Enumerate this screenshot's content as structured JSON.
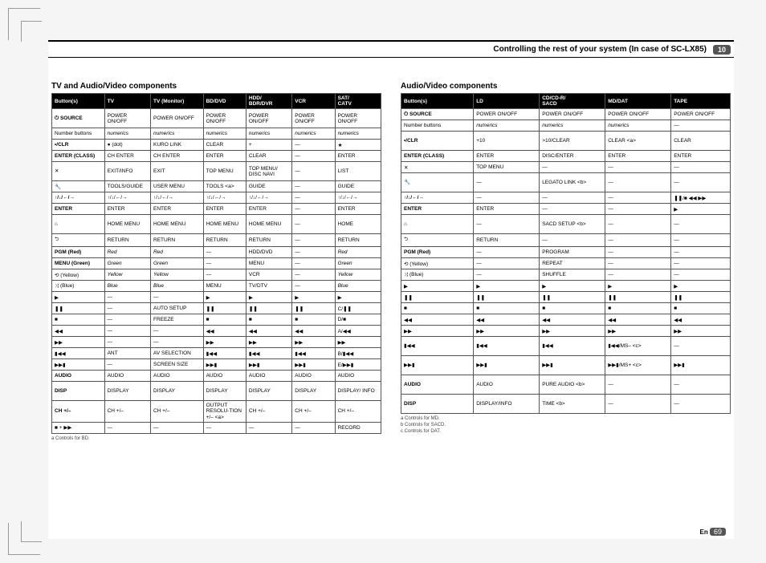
{
  "header": {
    "title_prefix": "Controlling the rest of your system (In case of ",
    "model": "SC-LX85",
    "title_suffix": ")",
    "chapter": "10"
  },
  "page_footer": {
    "lang": "En",
    "page": "69"
  },
  "left": {
    "title": "TV and Audio/Video components",
    "columns": [
      "Button(s)",
      "TV",
      "TV (Monitor)",
      "BD/DVD",
      "HDD/\nBDR/DVR",
      "VCR",
      "SAT/\nCATV"
    ],
    "col_widths": [
      "16%",
      "14%",
      "16%",
      "13%",
      "14%",
      "13%",
      "14%"
    ],
    "footnote": "a  Controls for BD.",
    "rows": [
      {
        "c": [
          "⏻ SOURCE",
          "POWER ON/OFF",
          "POWER ON/OFF",
          "POWER ON/OFF",
          "POWER ON/OFF",
          "POWER ON/OFF",
          "POWER ON/OFF"
        ],
        "bold0": true,
        "tall": true
      },
      {
        "c": [
          "Number buttons",
          "numerics",
          "numerics",
          "numerics",
          "numerics",
          "numerics",
          "numerics"
        ],
        "italic": [
          1,
          2,
          3,
          4,
          5,
          6
        ]
      },
      {
        "c": [
          "•/CLR",
          "● (dot)",
          "KURO LINK",
          "CLEAR",
          "+",
          "—",
          "★"
        ],
        "bold0": true
      },
      {
        "c": [
          "ENTER (CLASS)",
          "CH ENTER",
          "CH ENTER",
          "ENTER",
          "CLEAR",
          "—",
          "ENTER"
        ],
        "bold0": true
      },
      {
        "c": [
          "✕",
          "EXIT/INFO",
          "EXIT",
          "TOP MENU",
          "TOP MENU/ DISC NAVI",
          "—",
          "LIST"
        ],
        "tall": true
      },
      {
        "c": [
          "🔧",
          "TOOLS/GUIDE",
          "USER MENU",
          "TOOLS <a>",
          "GUIDE",
          "—",
          "GUIDE"
        ]
      },
      {
        "c": [
          "↑/↓/←/→",
          "↑/↓/←/→",
          "↑/↓/←/→",
          "↑/↓/←/→",
          "↑/↓/←/→",
          "—",
          "↑/↓/←/→"
        ],
        "bold0": true
      },
      {
        "c": [
          "ENTER",
          "ENTER",
          "ENTER",
          "ENTER",
          "ENTER",
          "—",
          "ENTER"
        ],
        "bold0": true
      },
      {
        "c": [
          "⌂",
          "HOME MENU",
          "HOME MENU",
          "HOME MENU",
          "HOME MENU",
          "—",
          "HOME"
        ],
        "tall": true
      },
      {
        "c": [
          "⮌",
          "RETURN",
          "RETURN",
          "RETURN",
          "RETURN",
          "—",
          "RETURN"
        ]
      },
      {
        "c": [
          "PGM (Red)",
          "Red",
          "Red",
          "—",
          "HDD/DVD",
          "—",
          "Red"
        ],
        "bold0": true,
        "italic": [
          1,
          2,
          6
        ]
      },
      {
        "c": [
          "MENU (Green)",
          "Green",
          "Green",
          "—",
          "MENU",
          "—",
          "Green"
        ],
        "bold0": true,
        "italic": [
          1,
          2,
          6
        ]
      },
      {
        "c": [
          "⟲ (Yellow)",
          "Yellow",
          "Yellow",
          "—",
          "VCR",
          "—",
          "Yellow"
        ],
        "italic": [
          1,
          2,
          6
        ]
      },
      {
        "c": [
          "⤨ (Blue)",
          "Blue",
          "Blue",
          "MENU",
          "TV/DTV",
          "—",
          "Blue"
        ],
        "italic": [
          1,
          2,
          6
        ]
      },
      {
        "c": [
          "▶",
          "—",
          "—",
          "▶",
          "▶",
          "▶",
          "▶"
        ]
      },
      {
        "c": [
          "❚❚",
          "—",
          "AUTO SETUP",
          "❚❚",
          "❚❚",
          "❚❚",
          "C/❚❚"
        ]
      },
      {
        "c": [
          "■",
          "—",
          "FREEZE",
          "■",
          "■",
          "■",
          "D/■"
        ]
      },
      {
        "c": [
          "◀◀",
          "—",
          "—",
          "◀◀",
          "◀◀",
          "◀◀",
          "A/◀◀"
        ]
      },
      {
        "c": [
          "▶▶",
          "—",
          "—",
          "▶▶",
          "▶▶",
          "▶▶",
          "▶▶"
        ]
      },
      {
        "c": [
          "▮◀◀",
          "ANT",
          "AV SELECTION",
          "▮◀◀",
          "▮◀◀",
          "▮◀◀",
          "B/▮◀◀"
        ]
      },
      {
        "c": [
          "▶▶▮",
          "—",
          "SCREEN SIZE",
          "▶▶▮",
          "▶▶▮",
          "▶▶▮",
          "E/▶▶▮"
        ]
      },
      {
        "c": [
          "AUDIO",
          "AUDIO",
          "AUDIO",
          "AUDIO",
          "AUDIO",
          "AUDIO",
          "AUDIO"
        ],
        "bold0": true
      },
      {
        "c": [
          "DISP",
          "DISPLAY",
          "DISPLAY",
          "DISPLAY",
          "DISPLAY",
          "DISPLAY",
          "DISPLAY/ INFO"
        ],
        "bold0": true,
        "tall": true
      },
      {
        "c": [
          "CH +/–",
          "CH +/–",
          "CH +/–",
          "OUTPUT RESOLU-TION +/– <a>",
          "CH +/–",
          "CH +/–",
          "CH +/–"
        ],
        "bold0": true,
        "tall": true
      },
      {
        "c": [
          "■ + ▶▶",
          "—",
          "—",
          "—",
          "—",
          "—",
          "RECORD"
        ]
      }
    ]
  },
  "right": {
    "title": "Audio/Video components",
    "columns": [
      "Button(s)",
      "LD",
      "CD/CD-R/\nSACD",
      "MD/DAT",
      "TAPE"
    ],
    "col_widths": [
      "22%",
      "20%",
      "20%",
      "20%",
      "18%"
    ],
    "footnote": "a  Controls for MD.\nb  Controls for SACD.\nc  Controls for DAT.",
    "rows": [
      {
        "c": [
          "⏻ SOURCE",
          "POWER ON/OFF",
          "POWER ON/OFF",
          "POWER ON/OFF",
          "POWER ON/OFF"
        ],
        "bold0": true
      },
      {
        "c": [
          "Number buttons",
          "numerics",
          "numerics",
          "numerics",
          "—"
        ],
        "italic": [
          1,
          2,
          3
        ]
      },
      {
        "c": [
          "•/CLR",
          "+10",
          ">10/CLEAR",
          "CLEAR <a>",
          "CLEAR"
        ],
        "bold0": true,
        "tall": true
      },
      {
        "c": [
          "ENTER (CLASS)",
          "ENTER",
          "DISC/ENTER",
          "ENTER",
          "ENTER"
        ],
        "bold0": true
      },
      {
        "c": [
          "✕",
          "TOP MENU",
          "—",
          "—",
          "—"
        ]
      },
      {
        "c": [
          "🔧",
          "—",
          "LEGATO LINK <b>",
          "—",
          "—"
        ],
        "tall": true
      },
      {
        "c": [
          "↑/↓/←/→",
          "—",
          "—",
          "—",
          "❚❚/■ ◀◀ ▶▶"
        ],
        "bold0": true
      },
      {
        "c": [
          "ENTER",
          "ENTER",
          "—",
          "—",
          "▶"
        ],
        "bold0": true
      },
      {
        "c": [
          "⌂",
          "—",
          "SACD SETUP <b>",
          "—",
          "—"
        ],
        "tall": true
      },
      {
        "c": [
          "⮌",
          "RETURN",
          "—",
          "—",
          "—"
        ]
      },
      {
        "c": [
          "PGM (Red)",
          "—",
          "PROGRAM",
          "—",
          "—"
        ],
        "bold0": true
      },
      {
        "c": [
          "⟲ (Yellow)",
          "—",
          "REPEAT",
          "—",
          "—"
        ]
      },
      {
        "c": [
          "⤨ (Blue)",
          "—",
          "SHUFFLE",
          "—",
          "—"
        ]
      },
      {
        "c": [
          "▶",
          "▶",
          "▶",
          "▶",
          "▶"
        ]
      },
      {
        "c": [
          "❚❚",
          "❚❚",
          "❚❚",
          "❚❚",
          "❚❚"
        ]
      },
      {
        "c": [
          "■",
          "■",
          "■",
          "■",
          "■"
        ]
      },
      {
        "c": [
          "◀◀",
          "◀◀",
          "◀◀",
          "◀◀",
          "◀◀"
        ]
      },
      {
        "c": [
          "▶▶",
          "▶▶",
          "▶▶",
          "▶▶",
          "▶▶"
        ]
      },
      {
        "c": [
          "▮◀◀",
          "▮◀◀",
          "▮◀◀",
          "▮◀◀/MS– <c>",
          "—"
        ],
        "tall": true
      },
      {
        "c": [
          "▶▶▮",
          "▶▶▮",
          "▶▶▮",
          "▶▶▮/MS+ <c>",
          "▶▶▮"
        ],
        "tall": true
      },
      {
        "c": [
          "AUDIO",
          "AUDIO",
          "PURE AUDIO <b>",
          "—",
          "—"
        ],
        "bold0": true,
        "tall": true
      },
      {
        "c": [
          "DISP",
          "DISPLAY/INFO",
          "TIME <b>",
          "—",
          "—"
        ],
        "bold0": true,
        "tall": true
      }
    ]
  }
}
